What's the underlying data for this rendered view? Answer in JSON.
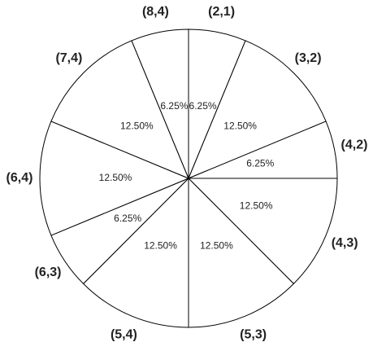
{
  "chart_data": {
    "type": "pie",
    "categories": [
      "(2,1)",
      "(3,2)",
      "(4,2)",
      "(4,3)",
      "(5,3)",
      "(5,4)",
      "(6,3)",
      "(6,4)",
      "(7,4)",
      "(8,4)"
    ],
    "values": [
      6.25,
      12.5,
      6.25,
      12.5,
      12.5,
      12.5,
      6.25,
      12.5,
      12.5,
      6.25
    ],
    "value_labels": [
      "6.25%",
      "12.50%",
      "6.25%",
      "12.50%",
      "12.50%",
      "12.50%",
      "6.25%",
      "12.50%",
      "12.50%",
      "6.25%"
    ],
    "color": "#ffffff"
  }
}
